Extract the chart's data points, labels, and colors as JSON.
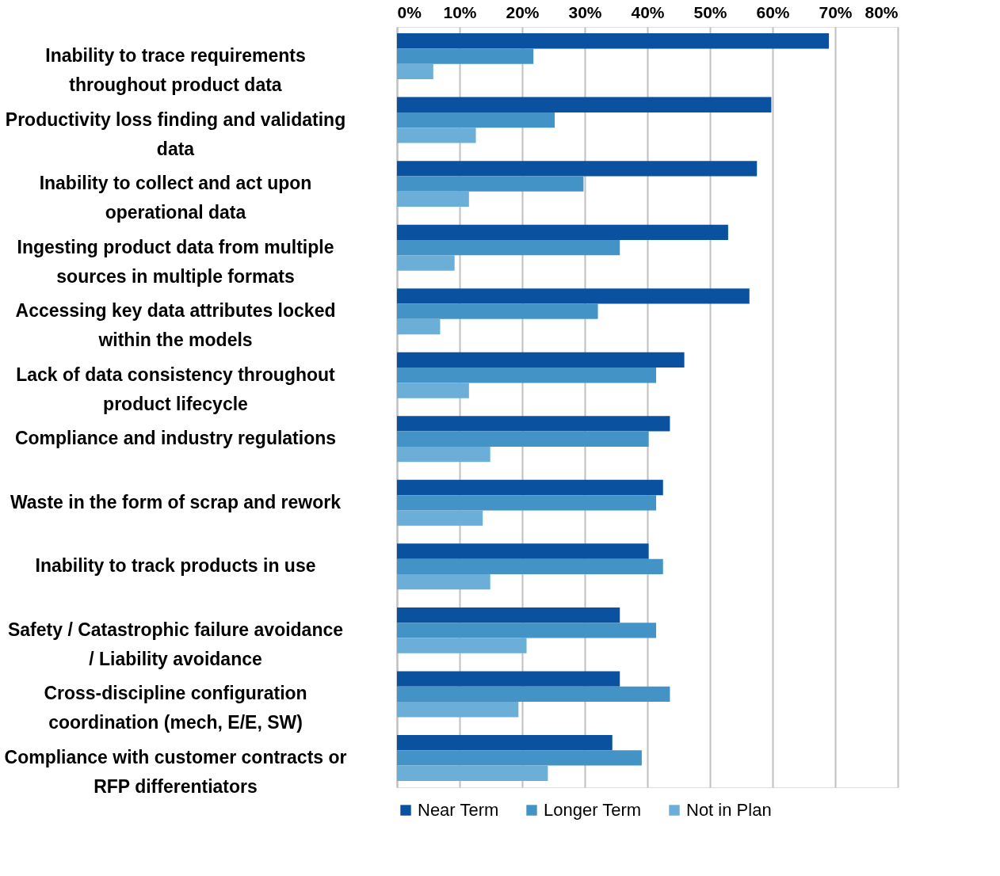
{
  "chart_data": {
    "type": "bar",
    "orientation": "horizontal",
    "categories": [
      "Inability to trace requirements throughout product data",
      "Productivity loss finding and validating data",
      "Inability to collect and act upon operational data",
      "Ingesting product data from multiple sources in multiple formats",
      "Accessing key data attributes locked within the models",
      "Lack of data consistency throughout product lifecycle",
      "Compliance and industry regulations",
      "Waste in the form of scrap and rework",
      "Inability to track products in use",
      "Safety / Catastrophic failure avoidance / Liability avoidance",
      "Cross-discipline configuration coordination (mech, E/E, SW)",
      "Compliance with customer contracts or RFP differentiators"
    ],
    "series": [
      {
        "name": "Near Term",
        "color": "#0a52a0",
        "values": [
          69.0,
          59.8,
          57.5,
          52.9,
          56.3,
          45.9,
          43.6,
          42.5,
          40.2,
          35.6,
          35.6,
          34.4
        ]
      },
      {
        "name": "Longer Term",
        "color": "#4493c7",
        "values": [
          21.8,
          25.2,
          29.8,
          35.6,
          32.1,
          41.4,
          40.2,
          41.4,
          42.5,
          41.4,
          43.6,
          39.1
        ]
      },
      {
        "name": "Not in Plan",
        "color": "#6baed8",
        "values": [
          5.8,
          12.6,
          11.5,
          9.2,
          6.9,
          11.5,
          14.9,
          13.7,
          14.9,
          20.7,
          19.4,
          24.1
        ]
      }
    ],
    "xlim": [
      0,
      80
    ],
    "xticks": [
      {
        "value": 0,
        "label": "0%"
      },
      {
        "value": 10,
        "label": "10%"
      },
      {
        "value": 20,
        "label": "20%"
      },
      {
        "value": 30,
        "label": "30%"
      },
      {
        "value": 40,
        "label": "40%"
      },
      {
        "value": 50,
        "label": "50%"
      },
      {
        "value": 60,
        "label": "60%"
      },
      {
        "value": 70,
        "label": "70%"
      },
      {
        "value": 80,
        "label": "80%"
      }
    ],
    "grid": "x",
    "legend": "bottom"
  }
}
